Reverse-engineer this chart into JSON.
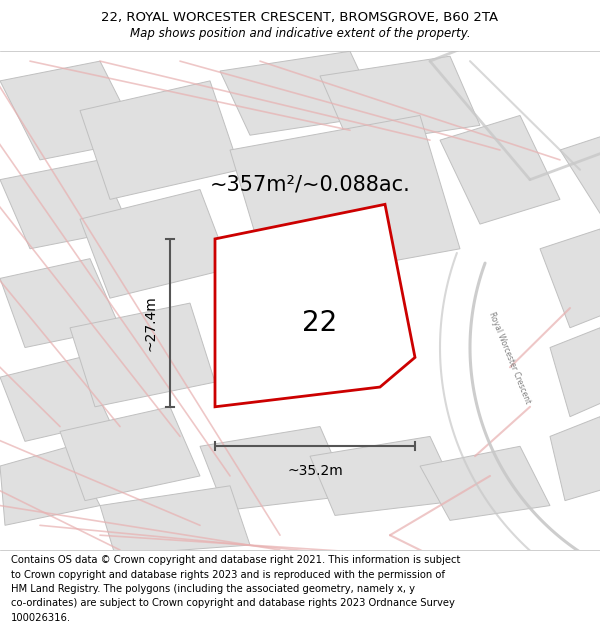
{
  "title": "22, ROYAL WORCESTER CRESCENT, BROMSGROVE, B60 2TA",
  "subtitle": "Map shows position and indicative extent of the property.",
  "area_text": "~357m²/~0.088ac.",
  "width_text": "~35.2m",
  "height_text": "~27.4m",
  "label": "22",
  "footer_line1": "Contains OS data © Crown copyright and database right 2021. This information is subject",
  "footer_line2": "to Crown copyright and database rights 2023 and is reproduced with the permission of",
  "footer_line3": "HM Land Registry. The polygons (including the associated geometry, namely x, y",
  "footer_line4": "co-ordinates) are subject to Crown copyright and database rights 2023 Ordnance Survey",
  "footer_line5": "100026316.",
  "bg_color": "#f2f2f2",
  "plot_fill": "#f2f2f2",
  "plot_edge": "#cc0000",
  "road_pink": "#e8b0b0",
  "building_fill": "#e0e0e0",
  "building_edge": "#c0c0c0",
  "road_gray": "#c8c8c8",
  "dim_color": "#555555",
  "title_fontsize": 9.5,
  "subtitle_fontsize": 8.5,
  "label_fontsize": 20,
  "area_fontsize": 15,
  "dim_fontsize": 10,
  "footer_fontsize": 7.2
}
